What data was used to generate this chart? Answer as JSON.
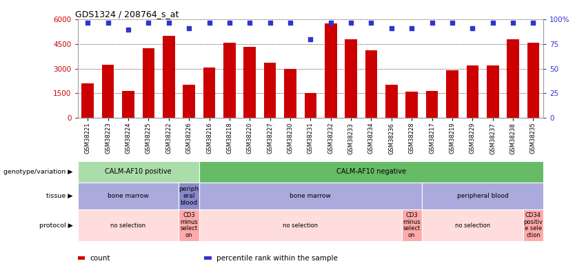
{
  "title": "GDS1324 / 208764_s_at",
  "samples": [
    "GSM38221",
    "GSM38223",
    "GSM38224",
    "GSM38225",
    "GSM38222",
    "GSM38226",
    "GSM38216",
    "GSM38218",
    "GSM38220",
    "GSM38227",
    "GSM38230",
    "GSM38231",
    "GSM38232",
    "GSM38233",
    "GSM38234",
    "GSM38236",
    "GSM38228",
    "GSM38217",
    "GSM38219",
    "GSM38229",
    "GSM38237",
    "GSM38238",
    "GSM38235"
  ],
  "counts": [
    2100,
    3250,
    1650,
    4250,
    5000,
    2000,
    3050,
    4600,
    4350,
    3350,
    3000,
    1500,
    5750,
    4800,
    4100,
    2000,
    1600,
    1650,
    2900,
    3200,
    3200,
    4800,
    4600
  ],
  "percentile": [
    97,
    97,
    90,
    97,
    97,
    91,
    97,
    97,
    97,
    97,
    97,
    80,
    97,
    97,
    97,
    91,
    91,
    97,
    97,
    91,
    97,
    97,
    97
  ],
  "bar_color": "#cc0000",
  "pct_color": "#3333cc",
  "ylim_left": [
    0,
    6000
  ],
  "yticks_left": [
    0,
    1500,
    3000,
    4500,
    6000
  ],
  "ylabels_left": [
    "0",
    "1500",
    "3000",
    "4500",
    "6000"
  ],
  "ylim_right": [
    0,
    100
  ],
  "yticks_right": [
    0,
    25,
    50,
    75,
    100
  ],
  "ylabels_right": [
    "0",
    "25",
    "50",
    "75",
    "100%"
  ],
  "genotype_labels": [
    {
      "label": "CALM-AF10 positive",
      "start": 0,
      "end": 6,
      "color": "#aaddaa"
    },
    {
      "label": "CALM-AF10 negative",
      "start": 6,
      "end": 23,
      "color": "#66bb66"
    }
  ],
  "tissue_labels": [
    {
      "label": "bone marrow",
      "start": 0,
      "end": 5,
      "color": "#aaaadd"
    },
    {
      "label": "periph\neral\nblood",
      "start": 5,
      "end": 6,
      "color": "#8888cc"
    },
    {
      "label": "bone marrow",
      "start": 6,
      "end": 17,
      "color": "#aaaadd"
    },
    {
      "label": "peripheral blood",
      "start": 17,
      "end": 23,
      "color": "#aaaadd"
    }
  ],
  "protocol_labels": [
    {
      "label": "no selection",
      "start": 0,
      "end": 5,
      "color": "#ffdddd"
    },
    {
      "label": "CD3\nminus\nselect\non",
      "start": 5,
      "end": 6,
      "color": "#ffaaaa"
    },
    {
      "label": "no selection",
      "start": 6,
      "end": 16,
      "color": "#ffdddd"
    },
    {
      "label": "CD3\nminus\nselect\non",
      "start": 16,
      "end": 17,
      "color": "#ffaaaa"
    },
    {
      "label": "no selection",
      "start": 17,
      "end": 22,
      "color": "#ffdddd"
    },
    {
      "label": "CD34\npositiv\ne sele\nction",
      "start": 22,
      "end": 23,
      "color": "#ffaaaa"
    }
  ],
  "row_labels": [
    "genotype/variation",
    "tissue",
    "protocol"
  ],
  "legend_items": [
    {
      "color": "#cc0000",
      "label": "count"
    },
    {
      "color": "#3333cc",
      "label": "percentile rank within the sample"
    }
  ],
  "fig_width": 8.34,
  "fig_height": 4.05,
  "dpi": 100
}
